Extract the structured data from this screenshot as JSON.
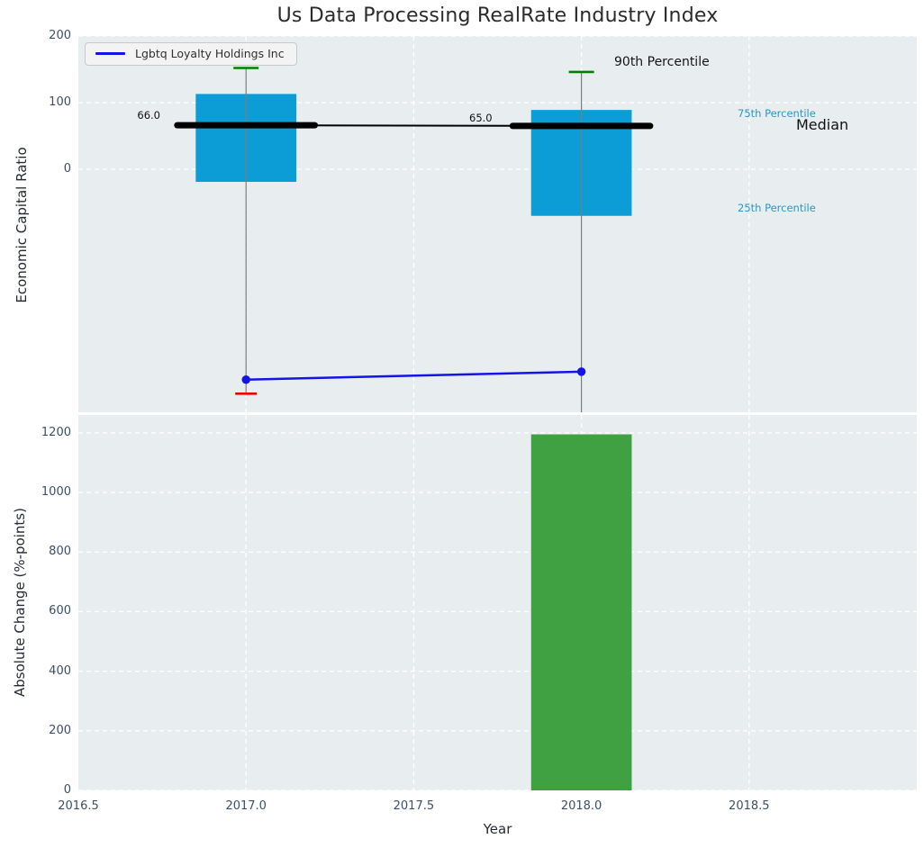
{
  "title": "Us Data Processing RealRate Industry Index",
  "legend": {
    "label": "Lgbtq Loyalty Holdings Inc"
  },
  "annotations": {
    "p90_label": "90th Percentile",
    "p75_label": "75th Percentile",
    "median_label": "Median",
    "p25_label": "25th Percentile",
    "median_value_2017": "66.0",
    "median_value_2018": "65.0"
  },
  "colors": {
    "box": "#0d9dd6",
    "bar": "#3fa142",
    "company_line": "#1414e6",
    "median_line": "#000000",
    "p90_cap": "#008000",
    "p10_cap": "#e60000",
    "whisker": "#7d7d7d",
    "plot_bg": "#e8edef",
    "grid": "#ffffff",
    "tick_text": "#3d4f68",
    "percentile_text": "#2b96c5",
    "title_text": "#2b2b2b"
  },
  "chart_data": [
    {
      "type": "boxplot+line",
      "title": "Us Data Processing RealRate Industry Index",
      "ylabel": "Economic Capital Ratio",
      "xlim": [
        2016.5,
        2019.0
      ],
      "ylim": [
        -365,
        200
      ],
      "yticks": [
        200,
        100,
        0
      ],
      "ytick_labels": [
        "200",
        "100",
        "0"
      ],
      "grid_x": [
        2017.0,
        2017.5,
        2018.0,
        2018.5
      ],
      "box_width": 0.3,
      "median_marker_halfwidth": 0.205,
      "boxes": [
        {
          "x": 2017,
          "p90": 152,
          "p75": 113,
          "median": 66,
          "p25": -19,
          "p10": -337,
          "p10_visible": true,
          "median_label": "66.0"
        },
        {
          "x": 2018,
          "p90": 146,
          "p75": 89,
          "median": 65,
          "p25": -70,
          "p10": -380,
          "p10_visible": false,
          "median_label": "65.0"
        }
      ],
      "company_series": {
        "name": "Lgbtq Loyalty Holdings Inc",
        "x": [
          2017,
          2018
        ],
        "y": [
          -316,
          -304
        ]
      },
      "legend_position": "upper left"
    },
    {
      "type": "bar",
      "ylabel": "Absolute Change (%-points)",
      "xlabel": "Year",
      "xlim": [
        2016.5,
        2019.0
      ],
      "ylim": [
        0,
        1260
      ],
      "yticks": [
        1200,
        1000,
        800,
        600,
        400,
        200,
        0
      ],
      "ytick_labels": [
        "1200",
        "1000",
        "800",
        "600",
        "400",
        "200",
        "0"
      ],
      "xticks": [
        2016.5,
        2017.0,
        2017.5,
        2018.0,
        2018.5
      ],
      "xtick_labels": [
        "2016.5",
        "2017.0",
        "2017.5",
        "2018.0",
        "2018.5"
      ],
      "grid_x": [
        2017.0,
        2017.5,
        2018.0,
        2018.5
      ],
      "bar_width": 0.3,
      "bars": [
        {
          "x": 2018,
          "value": 1195
        }
      ]
    }
  ]
}
